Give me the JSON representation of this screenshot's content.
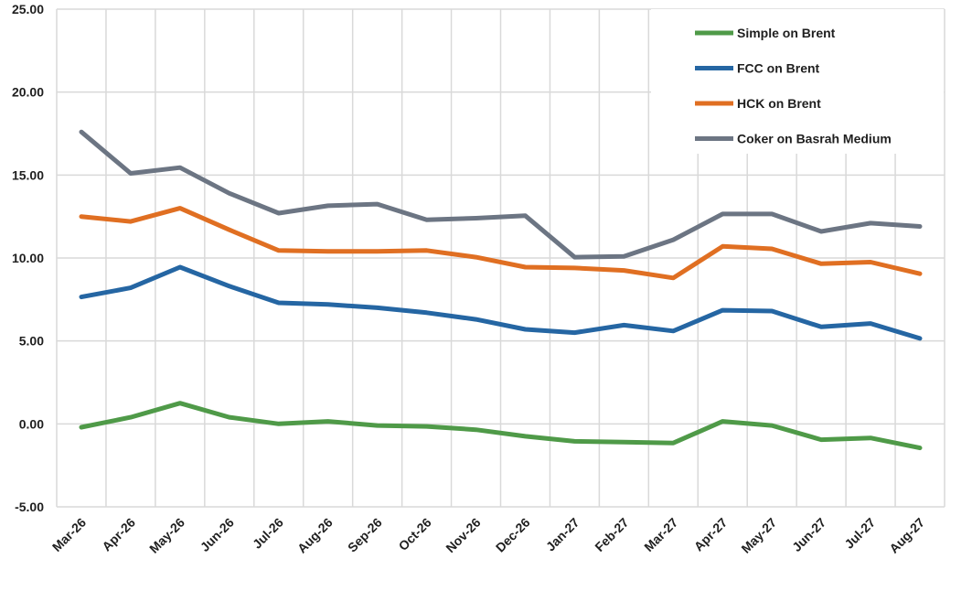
{
  "chart_data": {
    "type": "line",
    "title": "",
    "xlabel": "",
    "ylabel": "",
    "ylim": [
      -5,
      25
    ],
    "ytick_step": 5,
    "ytick_labels": [
      "-5.00",
      "0.00",
      "5.00",
      "10.00",
      "15.00",
      "20.00",
      "25.00"
    ],
    "grid": true,
    "legend_position": "top-right",
    "categories": [
      "Mar-26",
      "Apr-26",
      "May-26",
      "Jun-26",
      "Jul-26",
      "Aug-26",
      "Sep-26",
      "Oct-26",
      "Nov-26",
      "Dec-26",
      "Jan-27",
      "Feb-27",
      "Mar-27",
      "Apr-27",
      "May-27",
      "Jun-27",
      "Jul-27",
      "Aug-27"
    ],
    "series": [
      {
        "name": "Simple on Brent",
        "color": "#4f9a48",
        "values": [
          -0.2,
          0.4,
          1.25,
          0.4,
          0.0,
          0.15,
          -0.1,
          -0.15,
          -0.35,
          -0.75,
          -1.05,
          -1.1,
          -1.15,
          0.15,
          -0.1,
          -0.95,
          -0.85,
          -1.45
        ]
      },
      {
        "name": "FCC on Brent",
        "color": "#2566a3",
        "values": [
          7.65,
          8.2,
          9.45,
          8.3,
          7.3,
          7.2,
          7.0,
          6.7,
          6.3,
          5.7,
          5.5,
          5.95,
          5.6,
          6.85,
          6.8,
          5.85,
          6.05,
          5.15
        ]
      },
      {
        "name": "HCK on Brent",
        "color": "#e06f22",
        "values": [
          12.5,
          12.2,
          13.0,
          11.7,
          10.45,
          10.4,
          10.4,
          10.45,
          10.05,
          9.45,
          9.4,
          9.25,
          8.8,
          10.7,
          10.55,
          9.65,
          9.75,
          9.05
        ]
      },
      {
        "name": "Coker on Basrah Medium",
        "color": "#6c7583",
        "values": [
          17.6,
          15.1,
          15.45,
          13.9,
          12.7,
          13.15,
          13.25,
          12.3,
          12.4,
          12.55,
          10.05,
          10.1,
          11.1,
          12.65,
          12.65,
          11.6,
          12.1,
          11.9
        ]
      }
    ]
  }
}
